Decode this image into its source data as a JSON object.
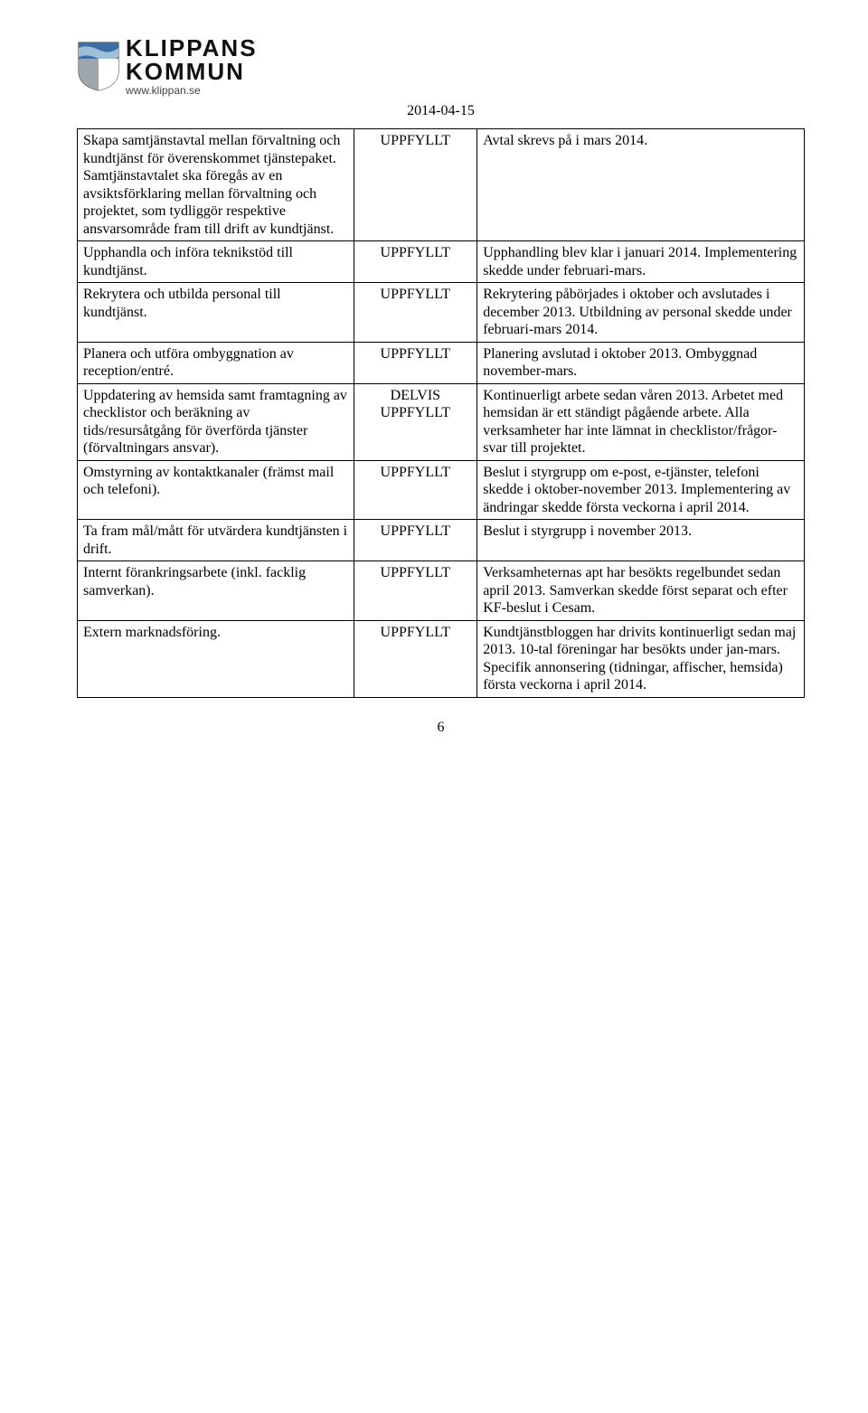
{
  "header": {
    "org_line1": "KLIPPANS",
    "org_line2": "KOMMUN",
    "url": "www.klippan.se",
    "shield_colors": {
      "top": "#3a6ea5",
      "bottom_left": "#9da6ad",
      "bottom_right": "#ffffff",
      "wave": "#3a6ea5"
    }
  },
  "date": "2014-04-15",
  "rows": [
    {
      "activity": "Skapa samtjänstavtal mellan förvaltning och kundtjänst för överenskommet tjänstepaket. Samtjänstavtalet ska föregås av en avsiktsförklaring mellan förvaltning och projektet, som tydliggör respektive ansvarsområde fram till drift av kundtjänst.",
      "status": "UPPFYLLT",
      "comment": "Avtal skrevs på i mars 2014."
    },
    {
      "activity": "Upphandla och införa teknikstöd till kundtjänst.",
      "status": "UPPFYLLT",
      "comment": "Upphandling blev klar i januari 2014. Implementering skedde under februari-mars."
    },
    {
      "activity": "Rekrytera och utbilda personal till kundtjänst.",
      "status": "UPPFYLLT",
      "comment": "Rekrytering påbörjades i oktober och avslutades i december 2013. Utbildning av personal skedde under februari-mars 2014."
    },
    {
      "activity": "Planera och utföra ombyggnation av reception/entré.",
      "status": "UPPFYLLT",
      "comment": "Planering avslutad i oktober 2013. Ombyggnad november-mars."
    },
    {
      "activity": "Uppdatering av hemsida samt framtagning av checklistor och beräkning av tids/resursåtgång för överförda tjänster (förvaltningars ansvar).",
      "status": "DELVIS UPPFYLLT",
      "comment": "Kontinuerligt arbete sedan våren 2013. Arbetet med hemsidan är ett ständigt pågående arbete. Alla verksamheter har inte lämnat in checklistor/frågor-svar till projektet."
    },
    {
      "activity": "Omstyrning av kontaktkanaler (främst mail och telefoni).",
      "status": "UPPFYLLT",
      "comment": "Beslut i styrgrupp om e-post, e-tjänster, telefoni skedde i oktober-november 2013. Implementering av ändringar skedde första veckorna i april 2014."
    },
    {
      "activity": "Ta fram mål/mått för utvärdera kundtjänsten i drift.",
      "status": "UPPFYLLT",
      "comment": "Beslut i styrgrupp i november 2013."
    },
    {
      "activity": "Internt förankringsarbete (inkl. facklig samverkan).",
      "status": "UPPFYLLT",
      "comment": "Verksamheternas apt har besökts regelbundet sedan april 2013. Samverkan skedde först separat och efter KF-beslut i Cesam."
    },
    {
      "activity": "Extern marknadsföring.",
      "status": "UPPFYLLT",
      "comment": "Kundtjänstbloggen har drivits kontinuerligt sedan maj 2013. 10-tal föreningar har besökts under jan-mars. Specifik annonsering (tidningar, affischer, hemsida) första veckorna i april 2014."
    }
  ],
  "page_number": "6"
}
